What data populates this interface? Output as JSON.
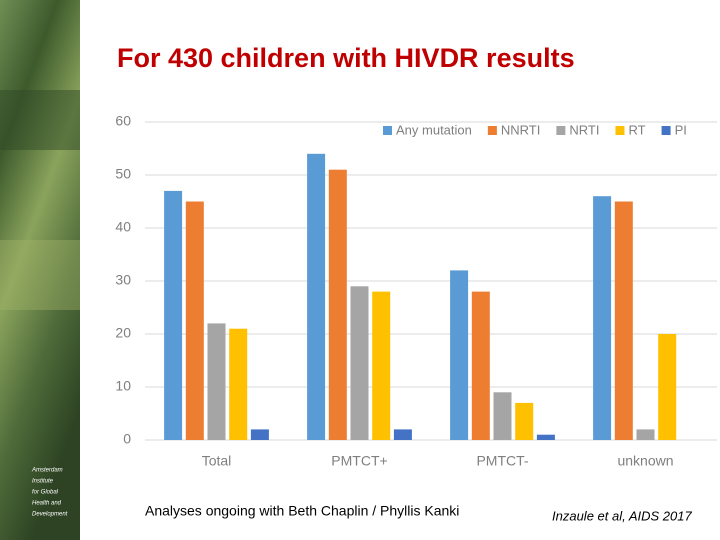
{
  "chart_data": {
    "type": "bar",
    "title": "For 430 children with HIVDR results",
    "categories": [
      "Total",
      "PMTCT+",
      "PMTCT-",
      "unknown"
    ],
    "series": [
      {
        "name": "Any mutation",
        "color": "#5b9bd5",
        "values": [
          47,
          54,
          32,
          46
        ]
      },
      {
        "name": "NNRTI",
        "color": "#ed7d31",
        "values": [
          45,
          51,
          28,
          45
        ]
      },
      {
        "name": "NRTI",
        "color": "#a5a5a5",
        "values": [
          22,
          29,
          9,
          2
        ]
      },
      {
        "name": "RT",
        "color": "#ffc000",
        "values": [
          21,
          28,
          7,
          20
        ]
      },
      {
        "name": "PI",
        "color": "#4472c4",
        "values": [
          2,
          2,
          1,
          0
        ]
      }
    ],
    "ylim": [
      0,
      60
    ],
    "yticks": [
      0,
      10,
      20,
      30,
      40,
      50,
      60
    ],
    "grid": true,
    "legend": "top-right",
    "annotations": [
      "Analyses ongoing with Beth Chaplin / Phyllis Kanki",
      "Inzaule et al, AIDS 2017"
    ]
  },
  "logo": {
    "lines": [
      "Amsterdam",
      "Institute",
      "for Global",
      "Health and",
      "Development"
    ]
  }
}
